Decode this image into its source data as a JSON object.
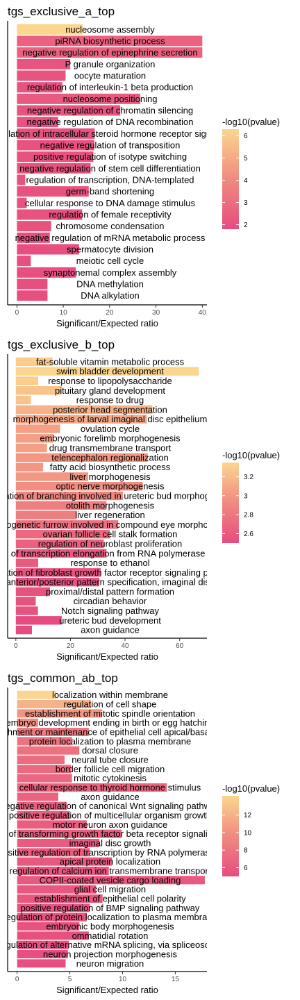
{
  "chart_data": [
    {
      "type": "bar",
      "orientation": "horizontal",
      "title": "tgs_exclusive_a_top",
      "xlabel": "Significant/Expected ratio",
      "xlim": [
        -2,
        41
      ],
      "xticks": [
        0,
        10,
        20,
        30,
        40
      ],
      "legend": {
        "title": "-log10(pvalue)",
        "ticks": [
          2,
          3,
          4,
          5,
          6
        ],
        "range": [
          1.8,
          6.3
        ],
        "position": "right"
      },
      "categories": [
        "nucleosome assembly",
        "piRNA biosynthetic process",
        "negative regulation of epinephrine secretion",
        "P granule organization",
        "oocyte maturation",
        "regulation of interleukin-1 beta production",
        "nucleosome positioning",
        "negative regulation of chromatin silencing",
        "negative regulation of DNA recombination",
        "negative regulation of intracellular steroid hormone receptor signaling pathway",
        "negative regulation of transposition",
        "positive regulation of isotype switching",
        "negative regulation of stem cell differentiation",
        "regulation of transcription, DNA-templated",
        "germ-band shortening",
        "cellular response to DNA damage stimulus",
        "regulation of female receptivity",
        "chromosome condensation",
        "negative regulation of mRNA metabolic process",
        "spermatocyte division",
        "meiotic cell cycle",
        "synaptonemal complex assembly",
        "DNA methylation",
        "DNA alkylation"
      ],
      "values": [
        14.2,
        40,
        40,
        11.5,
        10.5,
        9.8,
        26.6,
        22.3,
        8.9,
        16.8,
        16.7,
        16.5,
        15.9,
        1.8,
        15.5,
        2.1,
        14.1,
        7.4,
        7.1,
        13.4,
        3.0,
        12.7,
        6.6,
        6.6
      ],
      "pvalues": [
        6.3,
        2.6,
        2.6,
        2.1,
        2.1,
        2.1,
        2.3,
        2.1,
        2.0,
        2.0,
        2.0,
        2.0,
        2.0,
        2.0,
        2.0,
        2.0,
        2.0,
        2.0,
        1.9,
        1.9,
        1.9,
        1.9,
        1.9,
        1.9
      ]
    },
    {
      "type": "bar",
      "orientation": "horizontal",
      "title": "tgs_exclusive_b_top",
      "xlabel": "Significant/Expected ratio",
      "xlim": [
        -3,
        70
      ],
      "xticks": [
        0,
        20,
        40,
        60
      ],
      "legend": {
        "title": "-log10(pvalue)",
        "ticks": [
          2.6,
          2.8,
          3.0,
          3.2
        ],
        "range": [
          2.5,
          3.35
        ],
        "position": "right"
      },
      "categories": [
        "fat-soluble vitamin metabolic process",
        "swim bladder development",
        "response to lipopolysaccharide",
        "pituitary gland development",
        "response to drug",
        "posterior head segmentation",
        "morphogenesis of larval imaginal disc epithelium",
        "ovulation cycle",
        "embryonic forelimb morphogenesis",
        "drug transmembrane transport",
        "telencephalon regionalization",
        "fatty acid biosynthetic process",
        "liver morphogenesis",
        "optic nerve morphogenesis",
        "regulation of branching involved in ureteric bud morphogenesis",
        "otolith morphogenesis",
        "liver regeneration",
        "morphogenetic furrow involved in compound eye morphogenesis",
        "ovarian follicle cell stalk formation",
        "regulation of neuroblast proliferation",
        "regulation of transcription elongation from RNA polymerase II promoter",
        "response to ethanol",
        "regulation of fibroblast growth factor receptor signaling pathway",
        "anterior/posterior pattern specification, imaginal disc",
        "proximal/distal pattern formation",
        "circadian behavior",
        "Notch signaling pathway",
        "ureteric bud development",
        "axon guidance"
      ],
      "values": [
        13.4,
        67,
        8.2,
        16.8,
        5.5,
        50,
        48,
        16.2,
        13.6,
        11.4,
        48.3,
        10,
        26.5,
        46.5,
        39.2,
        33.2,
        22.3,
        37.5,
        34.4,
        32.2,
        33.2,
        8.2,
        31.1,
        30.6,
        12.5,
        7.3,
        8.1,
        16.8,
        5.9
      ],
      "pvalues": [
        3.3,
        3.35,
        3.3,
        3.25,
        3.25,
        3.15,
        3.1,
        3.05,
        3.05,
        3.05,
        3.0,
        3.0,
        3.0,
        2.95,
        2.9,
        2.85,
        2.85,
        2.75,
        2.7,
        2.65,
        2.6,
        2.6,
        2.55,
        2.55,
        2.55,
        2.55,
        2.55,
        2.5,
        2.5
      ]
    },
    {
      "type": "bar",
      "orientation": "horizontal",
      "title": "tgs_common_ab_top",
      "xlabel": "Significant/Expected ratio",
      "xlim": [
        -0.9,
        18
      ],
      "xticks": [
        0,
        5,
        10,
        15
      ],
      "legend": {
        "title": "-log10(pvalue)",
        "ticks": [
          6,
          8,
          10,
          12
        ],
        "range": [
          5,
          14.2
        ],
        "position": "right"
      },
      "categories": [
        "localization within membrane",
        "regulation of cell shape",
        "establishment of mitotic spindle orientation",
        "embryo development ending in birth or egg hatching",
        "establishment or maintenance of epithelial cell apical/basal polarity",
        "protein localization to plasma membrane",
        "dorsal closure",
        "neural tube closure",
        "border follicle cell migration",
        "mitotic cytokinesis",
        "cellular response to thyroid hormone stimulus",
        "axon guidance",
        "negative regulation of canonical Wnt signaling pathway",
        "positive regulation of multicellular organism growth",
        "motor neuron axon guidance",
        "regulation of transforming growth factor beta receptor signaling pathway",
        "imaginal disc growth",
        "positive regulation of transcription by RNA polymerase II",
        "apical protein localization",
        "regulation of calcium ion transmembrane transport",
        "COPII-coated vesicle cargo loading",
        "glial cell migration",
        "establishment of epithelial cell polarity",
        "positive regulation of BMP signaling pathway",
        "regulation of protein localization to plasma membrane",
        "embryonic body morphogenesis",
        "ommatidial rotation",
        "regulation of alternative mRNA splicing, via spliceosome",
        "neuron projection morphogenesis",
        "neuron migration"
      ],
      "values": [
        3.7,
        7.0,
        8.0,
        2.0,
        6.8,
        5.2,
        5.9,
        4.5,
        5.1,
        5.2,
        14.2,
        3.9,
        4.7,
        5.0,
        6.6,
        9.9,
        7.8,
        6.9,
        9.0,
        8.7,
        17.8,
        7.5,
        8.1,
        6.9,
        6.6,
        5.9,
        6.8,
        4.9,
        4.8,
        4.6
      ],
      "pvalues": [
        14.2,
        12.0,
        10.2,
        9.7,
        8.4,
        8.0,
        7.8,
        7.5,
        7.2,
        7.0,
        6.8,
        6.7,
        6.5,
        6.4,
        6.3,
        6.3,
        6.2,
        6.2,
        6.0,
        6.0,
        5.9,
        5.8,
        5.8,
        5.6,
        5.6,
        5.5,
        5.4,
        5.3,
        5.2,
        5.2
      ]
    }
  ]
}
